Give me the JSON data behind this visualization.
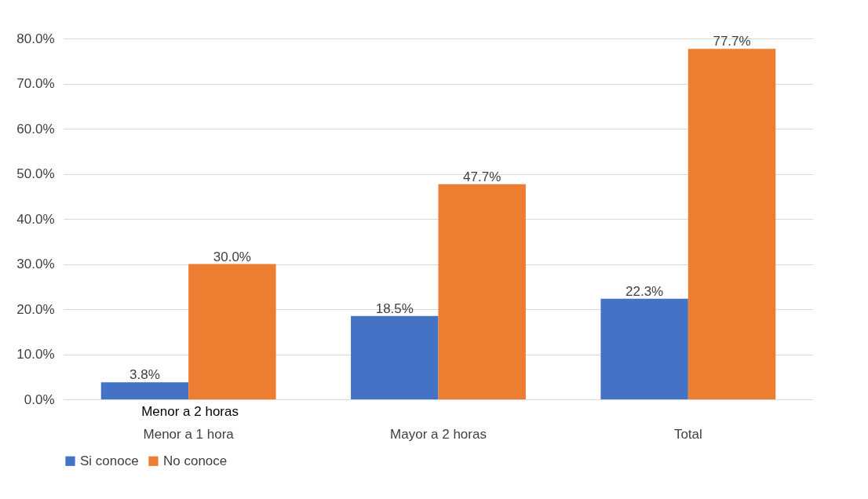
{
  "chart_data": {
    "type": "bar",
    "categories": [
      "Menor a 1 hora",
      "Mayor a 2 horas",
      "Total"
    ],
    "series": [
      {
        "name": "Si conoce",
        "color": "#4472c4",
        "values": [
          3.8,
          18.5,
          22.3
        ],
        "value_labels": [
          "3.8%",
          "18.5%",
          "22.3%"
        ]
      },
      {
        "name": "No conoce",
        "color": "#ed7d31",
        "values": [
          30.0,
          47.7,
          77.7
        ],
        "value_labels": [
          "30.0%",
          "47.7%",
          "77.7%"
        ]
      }
    ],
    "ylim": [
      0,
      80
    ],
    "yticks": [
      {
        "value": 0,
        "label": "0.0%"
      },
      {
        "value": 10,
        "label": "10.0%"
      },
      {
        "value": 20,
        "label": "20.0%"
      },
      {
        "value": 30,
        "label": "30.0%"
      },
      {
        "value": 40,
        "label": "40.0%"
      },
      {
        "value": 50,
        "label": "50.0%"
      },
      {
        "value": 60,
        "label": "60.0%"
      },
      {
        "value": 70,
        "label": "70.0%"
      },
      {
        "value": 80,
        "label": "80.0%"
      }
    ],
    "annotations": [
      "Menor a 2 horas"
    ],
    "grid": "y",
    "legend": "bottom"
  }
}
